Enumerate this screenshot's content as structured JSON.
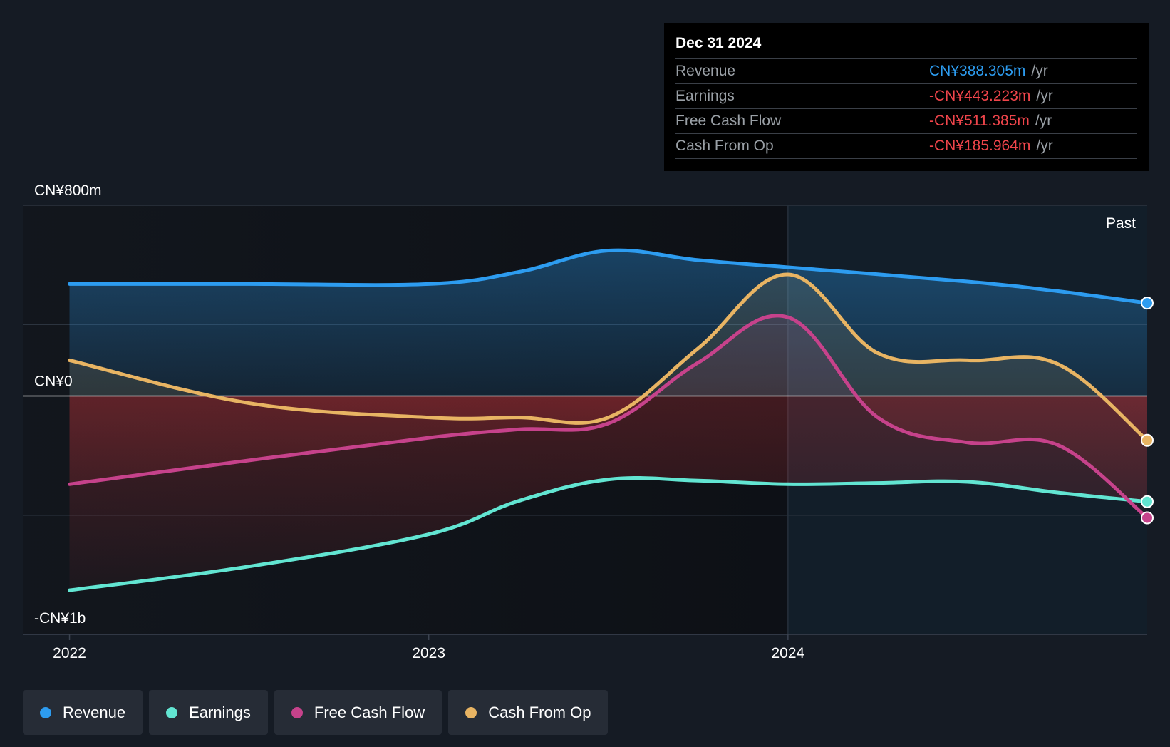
{
  "tooltip": {
    "date": "Dec 31 2024",
    "unit": "/yr",
    "rows": [
      {
        "label": "Revenue",
        "value": "CN¥388.305m",
        "color": "#2d9cf0"
      },
      {
        "label": "Earnings",
        "value": "-CN¥443.223m",
        "color": "#f0454b"
      },
      {
        "label": "Free Cash Flow",
        "value": "-CN¥511.385m",
        "color": "#f0454b"
      },
      {
        "label": "Cash From Op",
        "value": "-CN¥185.964m",
        "color": "#f0454b"
      }
    ]
  },
  "legend": [
    {
      "label": "Revenue",
      "color": "#2d9cf0"
    },
    {
      "label": "Earnings",
      "color": "#62e5d2"
    },
    {
      "label": "Free Cash Flow",
      "color": "#c6428b"
    },
    {
      "label": "Cash From Op",
      "color": "#e8b463"
    }
  ],
  "chart_data": {
    "type": "area",
    "y_tick_labels": [
      "CN¥800m",
      "CN¥0",
      "-CN¥1b"
    ],
    "x_tick_labels": [
      "2022",
      "2023",
      "2024"
    ],
    "x_ticks": [
      2022.0,
      2023.0,
      2024.0
    ],
    "region_label": "Past",
    "past_start": 2024.0,
    "xlim": [
      2021.87,
      2025.0
    ],
    "ylim": [
      -1000,
      800
    ],
    "series": [
      {
        "name": "Revenue",
        "color": "#2d9cf0",
        "points": [
          [
            2022.0,
            470
          ],
          [
            2022.5,
            470
          ],
          [
            2023.0,
            470
          ],
          [
            2023.25,
            520
          ],
          [
            2023.5,
            610
          ],
          [
            2023.75,
            570
          ],
          [
            2024.0,
            540
          ],
          [
            2024.5,
            480
          ],
          [
            2024.75,
            440
          ],
          [
            2025.0,
            390
          ]
        ]
      },
      {
        "name": "Earnings",
        "color": "#62e5d2",
        "points": [
          [
            2022.0,
            -815
          ],
          [
            2022.5,
            -715
          ],
          [
            2023.0,
            -580
          ],
          [
            2023.25,
            -440
          ],
          [
            2023.5,
            -350
          ],
          [
            2023.75,
            -355
          ],
          [
            2024.0,
            -370
          ],
          [
            2024.25,
            -365
          ],
          [
            2024.5,
            -360
          ],
          [
            2024.75,
            -405
          ],
          [
            2025.0,
            -443
          ]
        ]
      },
      {
        "name": "Free Cash Flow",
        "color": "#c6428b",
        "points": [
          [
            2022.0,
            -370
          ],
          [
            2022.5,
            -270
          ],
          [
            2023.0,
            -175
          ],
          [
            2023.25,
            -140
          ],
          [
            2023.5,
            -115
          ],
          [
            2023.75,
            140
          ],
          [
            2024.0,
            330
          ],
          [
            2024.25,
            -90
          ],
          [
            2024.5,
            -195
          ],
          [
            2024.75,
            -205
          ],
          [
            2025.0,
            -511
          ]
        ]
      },
      {
        "name": "Cash From Op",
        "color": "#e8b463",
        "points": [
          [
            2022.0,
            150
          ],
          [
            2022.5,
            -30
          ],
          [
            2023.0,
            -90
          ],
          [
            2023.25,
            -90
          ],
          [
            2023.5,
            -90
          ],
          [
            2023.75,
            200
          ],
          [
            2024.0,
            510
          ],
          [
            2024.25,
            180
          ],
          [
            2024.5,
            150
          ],
          [
            2024.75,
            135
          ],
          [
            2025.0,
            -186
          ]
        ]
      }
    ]
  }
}
